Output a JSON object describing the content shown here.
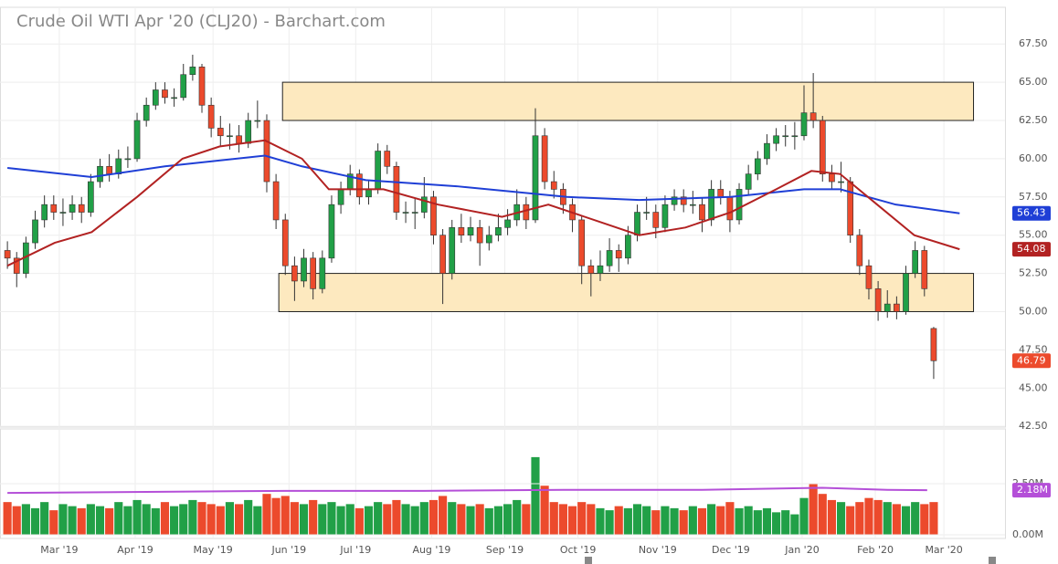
{
  "chart_data": {
    "type": "candlestick",
    "title": "Crude Oil WTI Apr '20 (CLJ20) - Barchart.com",
    "xlim": [
      -0.8,
      107.7
    ],
    "xticks": [
      {
        "value": 5.6,
        "label": "Mar '19"
      },
      {
        "value": 13.8,
        "label": "Apr '19"
      },
      {
        "value": 22.2,
        "label": "May '19"
      },
      {
        "value": 30.4,
        "label": "Jun '19"
      },
      {
        "value": 37.6,
        "label": "Jul '19"
      },
      {
        "value": 45.8,
        "label": "Aug '19"
      },
      {
        "value": 53.7,
        "label": "Sep '19"
      },
      {
        "value": 61.6,
        "label": "Oct '19"
      },
      {
        "value": 70.2,
        "label": "Nov '19"
      },
      {
        "value": 78.1,
        "label": "Dec '19"
      },
      {
        "value": 85.8,
        "label": "Jan '20"
      },
      {
        "value": 93.7,
        "label": "Feb '20"
      },
      {
        "value": 101.1,
        "label": "Mar '20"
      }
    ],
    "ylim": [
      42.45,
      69.9
    ],
    "yticks": [
      {
        "value": 42.5,
        "label": "42.50"
      },
      {
        "value": 45,
        "label": "45.00"
      },
      {
        "value": 47.5,
        "label": "47.50"
      },
      {
        "value": 50,
        "label": "50.00"
      },
      {
        "value": 52.5,
        "label": "52.50"
      },
      {
        "value": 55,
        "label": "55.00"
      },
      {
        "value": 57.5,
        "label": "57.50"
      },
      {
        "value": 60,
        "label": "60.00"
      },
      {
        "value": 62.5,
        "label": "62.50"
      },
      {
        "value": 65,
        "label": "65.00"
      },
      {
        "value": 67.5,
        "label": "67.50"
      }
    ],
    "up_color": "#21a047",
    "down_color": "#ec4a2c",
    "grid": true,
    "open": [
      54.0,
      53.5,
      52.5,
      54.5,
      56.0,
      57.0,
      56.5,
      56.5,
      57.0,
      56.5,
      58.5,
      59.5,
      59.0,
      60.0,
      60.0,
      62.5,
      63.5,
      64.5,
      64.0,
      64.0,
      65.5,
      66.0,
      63.5,
      62.0,
      61.5,
      61.5,
      61.0,
      62.5,
      62.5,
      58.5,
      56.0,
      53.0,
      52.0,
      53.5,
      51.5,
      53.5,
      57.0,
      58.0,
      59.0,
      57.5,
      58.0,
      60.5,
      59.5,
      56.5,
      56.5,
      56.5,
      57.5,
      55.0,
      52.5,
      55.5,
      55.0,
      55.5,
      54.5,
      55.0,
      55.5,
      56.0,
      57.0,
      56.0,
      61.5,
      58.5,
      58.0,
      57.0,
      56.0,
      53.0,
      52.5,
      53.0,
      54.0,
      53.5,
      55.0,
      56.5,
      56.5,
      55.5,
      57.0,
      57.5,
      57.0,
      57.0,
      56.0,
      58.0,
      57.5,
      56.0,
      58.0,
      59.0,
      60.0,
      61.0,
      61.5,
      61.5,
      61.5,
      63.0,
      62.5,
      59.0,
      58.5,
      58.5,
      55.0,
      53.0,
      51.5,
      50.0,
      50.5,
      50.0,
      52.5,
      54.0,
      48.9
    ],
    "high": [
      54.6,
      53.9,
      54.9,
      56.6,
      57.6,
      57.6,
      57.4,
      57.6,
      57.5,
      59.0,
      60.0,
      60.3,
      60.6,
      60.8,
      63.0,
      64.0,
      65.0,
      65.0,
      64.6,
      66.2,
      66.8,
      66.2,
      64.0,
      62.8,
      62.3,
      62.2,
      63.0,
      63.8,
      62.9,
      59.0,
      56.4,
      53.6,
      54.1,
      53.9,
      54.0,
      57.6,
      58.5,
      59.6,
      59.3,
      58.6,
      61.0,
      60.9,
      59.8,
      57.2,
      57.4,
      58.8,
      57.9,
      55.4,
      56.0,
      56.4,
      56.2,
      56.0,
      55.6,
      56.4,
      56.7,
      58.0,
      57.5,
      63.3,
      62.0,
      59.2,
      58.4,
      57.4,
      56.3,
      53.4,
      54.0,
      54.8,
      54.4,
      55.6,
      57.0,
      57.5,
      57.0,
      57.6,
      58.0,
      58.0,
      57.9,
      57.4,
      58.6,
      58.6,
      57.9,
      58.4,
      59.6,
      60.5,
      61.6,
      62.0,
      62.2,
      62.4,
      64.8,
      65.6,
      62.8,
      59.6,
      59.8,
      58.8,
      55.4,
      53.4,
      52.0,
      51.4,
      51.0,
      53.0,
      54.6,
      54.3,
      49.0
    ],
    "low": [
      52.8,
      51.6,
      52.2,
      54.1,
      55.5,
      56.0,
      55.6,
      56.0,
      55.8,
      56.2,
      58.1,
      58.5,
      58.7,
      59.4,
      59.8,
      62.1,
      63.2,
      63.6,
      63.4,
      63.8,
      65.1,
      63.0,
      61.4,
      60.8,
      60.6,
      60.4,
      60.7,
      62.0,
      57.8,
      55.4,
      52.4,
      50.7,
      51.6,
      50.8,
      51.2,
      53.2,
      56.4,
      57.6,
      57.0,
      57.0,
      57.7,
      59.0,
      56.0,
      55.8,
      55.4,
      56.1,
      54.4,
      50.5,
      52.1,
      54.5,
      54.6,
      53.0,
      54.0,
      54.6,
      55.0,
      55.6,
      55.4,
      55.8,
      58.0,
      57.4,
      56.4,
      55.2,
      51.8,
      51.0,
      52.0,
      52.6,
      52.6,
      53.1,
      54.6,
      56.0,
      54.8,
      55.2,
      56.6,
      56.5,
      56.4,
      55.2,
      55.6,
      57.0,
      55.2,
      55.7,
      57.6,
      58.6,
      59.6,
      60.5,
      60.8,
      60.6,
      61.2,
      62.0,
      58.5,
      58.0,
      57.8,
      54.5,
      52.4,
      50.8,
      49.4,
      49.6,
      49.5,
      49.8,
      52.2,
      51.0,
      45.6
    ],
    "close": [
      53.5,
      52.5,
      54.5,
      56.0,
      57.0,
      56.5,
      56.5,
      57.0,
      56.5,
      58.5,
      59.5,
      59.0,
      60.0,
      60.0,
      62.5,
      63.5,
      64.5,
      64.0,
      64.0,
      65.5,
      66.0,
      63.5,
      62.0,
      61.5,
      61.5,
      61.0,
      62.5,
      62.5,
      58.5,
      56.0,
      53.0,
      52.0,
      53.5,
      51.5,
      53.5,
      57.0,
      58.0,
      59.0,
      57.5,
      58.0,
      60.5,
      59.5,
      56.5,
      56.5,
      56.5,
      57.5,
      55.0,
      52.5,
      55.5,
      55.0,
      55.5,
      54.5,
      55.0,
      55.5,
      56.0,
      57.0,
      56.0,
      61.5,
      58.5,
      58.0,
      57.0,
      56.0,
      53.0,
      52.5,
      53.0,
      54.0,
      53.5,
      55.0,
      56.5,
      56.5,
      55.5,
      57.0,
      57.5,
      57.0,
      57.0,
      56.0,
      58.0,
      57.5,
      56.0,
      58.0,
      59.0,
      60.0,
      61.0,
      61.5,
      61.5,
      61.5,
      63.0,
      62.5,
      59.0,
      58.5,
      58.5,
      55.0,
      53.0,
      51.5,
      50.0,
      50.5,
      50.0,
      52.5,
      54.0,
      51.5,
      46.79
    ],
    "moving_averages": [
      {
        "color": "#1f3fd6",
        "x": [
          0,
          9.1,
          17,
          27.8,
          31.8,
          38.7,
          48.5,
          60.4,
          68.2,
          78.1,
          86,
          89.9,
          95.9,
          102.8
        ],
        "values": [
          59.4,
          58.8,
          59.5,
          60.2,
          59.5,
          58.6,
          58.2,
          57.5,
          57.3,
          57.5,
          58.0,
          58.0,
          57.0,
          56.43
        ]
      },
      {
        "color": "#b22222",
        "x": [
          0,
          5.1,
          9.1,
          14,
          18.9,
          22.9,
          27.8,
          31.8,
          34.7,
          40.6,
          46.5,
          53.4,
          58.4,
          64.3,
          68.2,
          73.2,
          78.1,
          83,
          86.8,
          89.9,
          93.9,
          97.9,
          102.8
        ],
        "values": [
          53.0,
          54.5,
          55.2,
          57.5,
          60.0,
          60.8,
          61.2,
          60.0,
          58.0,
          58.0,
          57.0,
          56.2,
          57.0,
          55.8,
          55.0,
          55.5,
          56.5,
          58.0,
          59.2,
          59.0,
          57.0,
          55.0,
          54.08
        ]
      }
    ],
    "zones": [
      {
        "x0": 29.7,
        "x1": 104.3,
        "y0": 62.5,
        "y1": 65
      },
      {
        "x0": 29.3,
        "x1": 104.3,
        "y0": 50,
        "y1": 52.5
      }
    ],
    "zone_color": "#fde9bf",
    "volume": [
      1.6,
      1.4,
      1.5,
      1.3,
      1.6,
      1.2,
      1.5,
      1.4,
      1.3,
      1.5,
      1.4,
      1.3,
      1.6,
      1.4,
      1.7,
      1.5,
      1.3,
      1.6,
      1.4,
      1.5,
      1.7,
      1.6,
      1.5,
      1.4,
      1.6,
      1.5,
      1.7,
      1.4,
      2.0,
      1.8,
      1.9,
      1.6,
      1.5,
      1.7,
      1.5,
      1.6,
      1.4,
      1.5,
      1.3,
      1.4,
      1.6,
      1.5,
      1.7,
      1.5,
      1.4,
      1.6,
      1.7,
      1.9,
      1.6,
      1.5,
      1.4,
      1.5,
      1.3,
      1.4,
      1.5,
      1.7,
      1.5,
      3.8,
      2.4,
      1.6,
      1.5,
      1.4,
      1.6,
      1.5,
      1.3,
      1.2,
      1.4,
      1.3,
      1.5,
      1.4,
      1.2,
      1.4,
      1.3,
      1.2,
      1.4,
      1.3,
      1.5,
      1.4,
      1.6,
      1.3,
      1.4,
      1.2,
      1.3,
      1.1,
      1.2,
      1.0,
      1.8,
      2.5,
      2.0,
      1.7,
      1.6,
      1.4,
      1.6,
      1.8,
      1.7,
      1.6,
      1.5,
      1.4,
      1.6,
      1.5,
      1.6
    ],
    "vlim": [
      -0.18,
      5.18
    ],
    "vticks": [
      {
        "value": 0,
        "label": "0.00M"
      },
      {
        "value": 2.5,
        "label": "2.50M"
      }
    ],
    "volume_average": {
      "color": "#b44fd8",
      "x": [
        0,
        15,
        30,
        45,
        60,
        75,
        88,
        95,
        99.3
      ],
      "values": [
        2.05,
        2.1,
        2.15,
        2.15,
        2.2,
        2.2,
        2.3,
        2.2,
        2.18
      ],
      "last_label": "2.18M"
    }
  }
}
